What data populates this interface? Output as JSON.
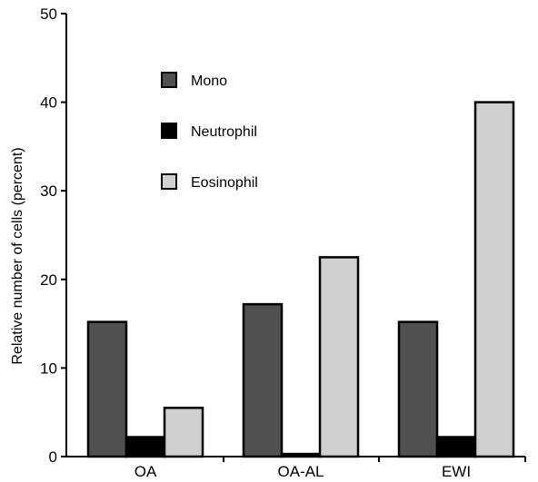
{
  "chart_data": {
    "type": "bar",
    "title": "",
    "xlabel": "",
    "ylabel": "Relative number of cells (percent)",
    "ylim": [
      0,
      50
    ],
    "yticks": [
      0,
      10,
      20,
      30,
      40,
      50
    ],
    "grid": false,
    "legend_position": "top-left-inside",
    "categories": [
      "OA",
      "OA-AL",
      "EWI"
    ],
    "series": [
      {
        "name": "Mono",
        "color": "#505050",
        "values": [
          15.2,
          17.2,
          15.2
        ]
      },
      {
        "name": "Neutrophil",
        "color": "#000000",
        "values": [
          2.2,
          0.3,
          2.2
        ]
      },
      {
        "name": "Eosinophil",
        "color": "#cfcfcf",
        "values": [
          5.5,
          22.5,
          40.0
        ]
      }
    ]
  }
}
